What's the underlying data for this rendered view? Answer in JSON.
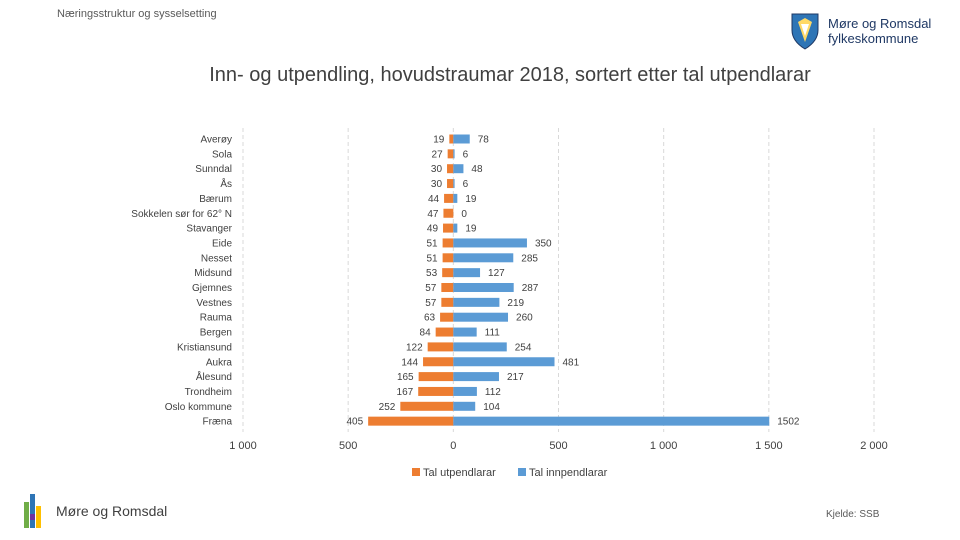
{
  "header": {
    "section_label": "Næringsstruktur og sysselsetting",
    "org_line1": "Møre og Romsdal",
    "org_line2": "fylkeskommune"
  },
  "footer": {
    "brand": "Møre og Romsdal",
    "source": "Kjelde: SSB"
  },
  "colors": {
    "out": "#ed7d31",
    "in": "#5b9bd5",
    "grid": "#d9d9d9",
    "text": "#404040"
  },
  "chart_data": {
    "type": "bar",
    "orientation": "horizontal",
    "title": "Inn- og utpendling, hovudstraumar 2018, sortert etter tal utpendlarar",
    "categories": [
      "Averøy",
      "Sola",
      "Sunndal",
      "Ås",
      "Bærum",
      "Sokkelen sør for 62° N",
      "Stavanger",
      "Eide",
      "Nesset",
      "Midsund",
      "Gjemnes",
      "Vestnes",
      "Rauma",
      "Bergen",
      "Kristiansund",
      "Aukra",
      "Ålesund",
      "Trondheim",
      "Oslo kommune",
      "Fræna"
    ],
    "series": [
      {
        "name": "Tal utpendlarar",
        "direction": "left",
        "values": [
          19,
          27,
          30,
          30,
          44,
          47,
          49,
          51,
          51,
          53,
          57,
          57,
          63,
          84,
          122,
          144,
          165,
          167,
          252,
          405
        ]
      },
      {
        "name": "Tal innpendlarar",
        "direction": "right",
        "values": [
          78,
          6,
          48,
          6,
          19,
          0,
          19,
          350,
          285,
          127,
          287,
          219,
          260,
          111,
          254,
          481,
          217,
          112,
          104,
          1502
        ]
      }
    ],
    "xlim": [
      -1000,
      2000
    ],
    "xticks": [
      -1000,
      -500,
      0,
      500,
      1000,
      1500,
      2000
    ],
    "xtick_labels": [
      "1 000",
      "500",
      "0",
      "500",
      "1 000",
      "1 500",
      "2 000"
    ],
    "grid": true,
    "legend": "bottom"
  }
}
